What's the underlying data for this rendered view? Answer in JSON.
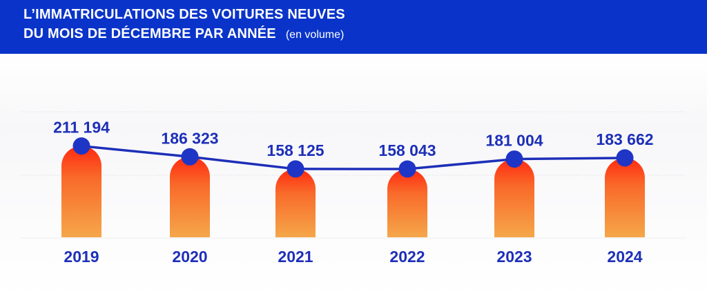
{
  "header": {
    "title_line1": "L’IMMATRICULATIONS DES VOITURES NEUVES",
    "title_line2": "DU MOIS DE DÉCEMBRE PAR ANNÉE",
    "subtitle": "(en volume)"
  },
  "colors": {
    "header_bg": "#0a34c9",
    "line": "#1d2fb8",
    "marker": "#1f35c6",
    "bar_top": "#ff2a10",
    "bar_bottom": "#f5a74a",
    "label": "#1d2fb8"
  },
  "chart_data": {
    "type": "bar",
    "categories": [
      "2019",
      "2020",
      "2021",
      "2022",
      "2023",
      "2024"
    ],
    "values": [
      211194,
      186323,
      158125,
      158043,
      181004,
      183662
    ],
    "value_labels": [
      "211 194",
      "186 323",
      "158 125",
      "158 043",
      "181 004",
      "183 662"
    ],
    "overlay": "line with circle markers at each value",
    "grid": true
  }
}
